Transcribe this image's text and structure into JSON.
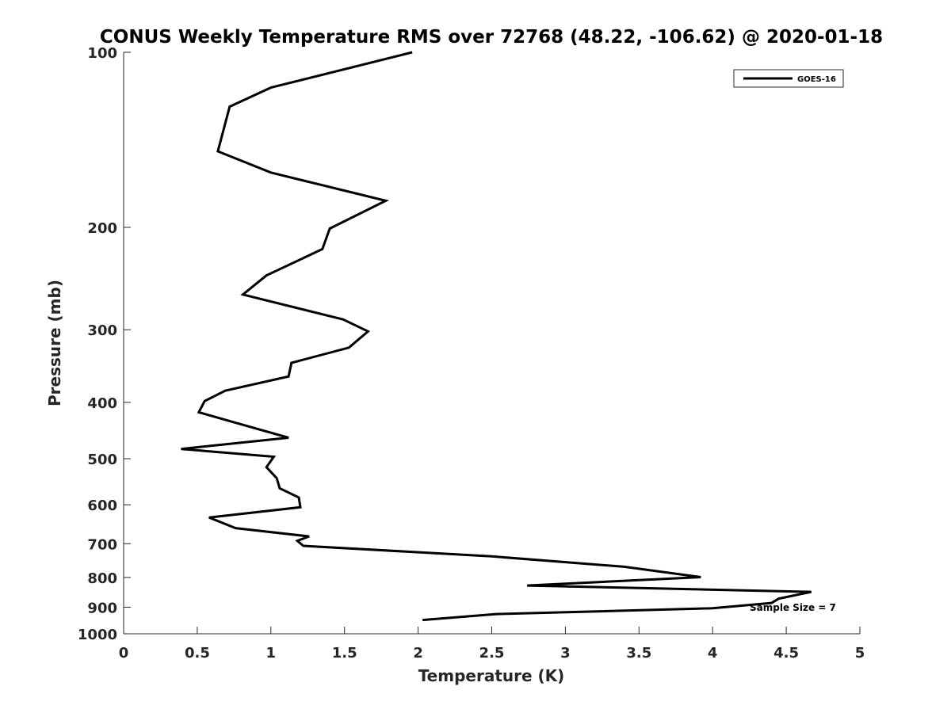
{
  "chart_data": {
    "type": "line",
    "title": "CONUS Weekly Temperature RMS over 72768 (48.22, -106.62) @ 2020-01-18",
    "xlabel": "Temperature (K)",
    "ylabel": "Pressure (mb)",
    "xlim": [
      0,
      5
    ],
    "ylim": [
      100,
      1000
    ],
    "y_scale": "log",
    "y_direction": "reversed",
    "x_ticks": [
      "0",
      "0.5",
      "1",
      "1.5",
      "2",
      "2.5",
      "3",
      "3.5",
      "4",
      "4.5",
      "5"
    ],
    "y_ticks": [
      "100",
      "200",
      "300",
      "400",
      "500",
      "600",
      "700",
      "800",
      "900",
      "1000"
    ],
    "grid": false,
    "legend_position": "top-right",
    "annotation": "Sample Size = 7",
    "colors": {
      "line": "#000000",
      "axis": "#262626"
    },
    "series": [
      {
        "name": "GOES-16",
        "points": [
          [
            1.96,
            100
          ],
          [
            1.0,
            115
          ],
          [
            0.72,
            124
          ],
          [
            0.64,
            148
          ],
          [
            1.0,
            161
          ],
          [
            1.78,
            180
          ],
          [
            1.4,
            201
          ],
          [
            1.35,
            218
          ],
          [
            0.97,
            242
          ],
          [
            0.81,
            261
          ],
          [
            1.49,
            288
          ],
          [
            1.66,
            302
          ],
          [
            1.53,
            322
          ],
          [
            1.14,
            342
          ],
          [
            1.12,
            361
          ],
          [
            0.69,
            382
          ],
          [
            0.55,
            398
          ],
          [
            0.51,
            416
          ],
          [
            0.85,
            440
          ],
          [
            1.12,
            460
          ],
          [
            0.39,
            481
          ],
          [
            1.02,
            496
          ],
          [
            0.97,
            517
          ],
          [
            1.04,
            540
          ],
          [
            1.06,
            562
          ],
          [
            1.19,
            583
          ],
          [
            1.2,
            606
          ],
          [
            0.58,
            631
          ],
          [
            0.76,
            658
          ],
          [
            1.26,
            680
          ],
          [
            1.18,
            692
          ],
          [
            1.22,
            706
          ],
          [
            2.5,
            736
          ],
          [
            3.4,
            767
          ],
          [
            3.92,
            799
          ],
          [
            2.74,
            826
          ],
          [
            4.67,
            847
          ],
          [
            4.45,
            870
          ],
          [
            4.4,
            885
          ],
          [
            4.0,
            904
          ],
          [
            2.53,
            925
          ],
          [
            2.03,
            947
          ]
        ]
      }
    ]
  }
}
